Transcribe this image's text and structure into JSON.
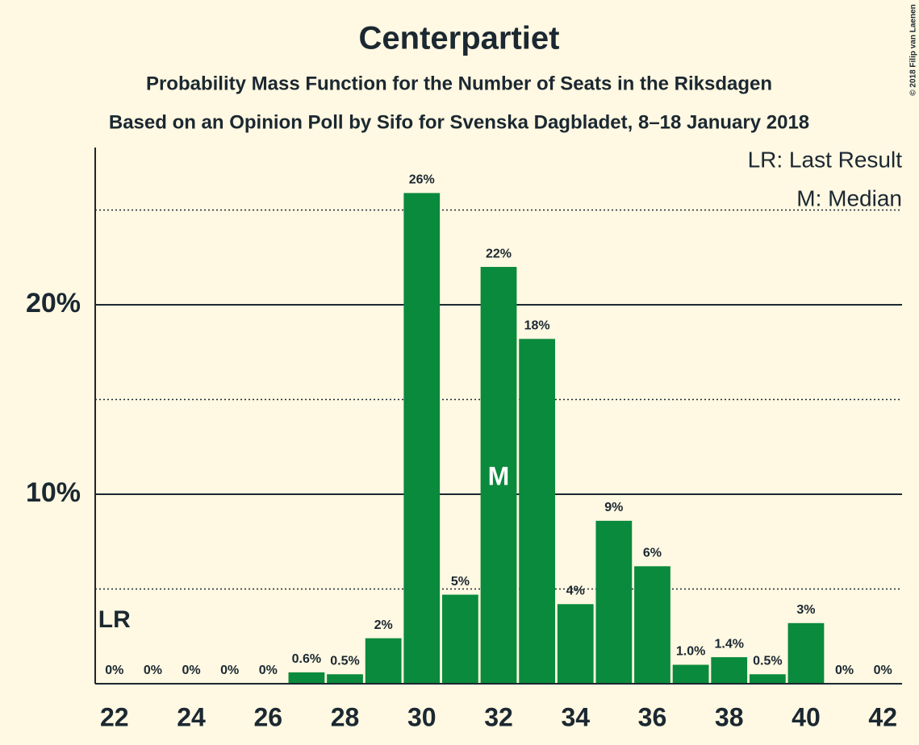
{
  "chart_data": {
    "type": "bar",
    "title": "Centerpartiet",
    "subtitle": "Probability Mass Function for the Number of Seats in the Riksdagen",
    "subtitle2": "Based on an Opinion Poll by Sifo for Svenska Dagbladet, 8–18 January 2018",
    "copyright": "© 2018 Filip van Laenen",
    "x": [
      22,
      23,
      24,
      25,
      26,
      27,
      28,
      29,
      30,
      31,
      32,
      33,
      34,
      35,
      36,
      37,
      38,
      39,
      40,
      41,
      42
    ],
    "values": [
      0,
      0,
      0,
      0,
      0,
      0.6,
      0.5,
      2.4,
      25.9,
      4.7,
      22.0,
      18.2,
      4.2,
      8.6,
      6.2,
      1.0,
      1.4,
      0.5,
      3.2,
      0,
      0
    ],
    "value_labels": [
      "0%",
      "0%",
      "0%",
      "0%",
      "0%",
      "0.6%",
      "0.5%",
      "2%",
      "26%",
      "5%",
      "22%",
      "18%",
      "4%",
      "9%",
      "6%",
      "1.0%",
      "1.4%",
      "0.5%",
      "3%",
      "0%",
      "0%"
    ],
    "color": "#0a8a3c",
    "xlim": [
      21.5,
      42.5
    ],
    "xticks": [
      22,
      24,
      26,
      28,
      30,
      32,
      34,
      36,
      38,
      40,
      42
    ],
    "ylim": [
      0,
      28.3
    ],
    "yticks": [
      {
        "value": 10,
        "label": "10%"
      },
      {
        "value": 20,
        "label": "20%"
      }
    ],
    "minor_grid": [
      5,
      15,
      25
    ],
    "grid": true,
    "last_result": {
      "x": 22,
      "label": "LR"
    },
    "median": {
      "x": 32,
      "label": "M"
    },
    "legend": [
      "LR: Last Result",
      "M: Median"
    ]
  }
}
